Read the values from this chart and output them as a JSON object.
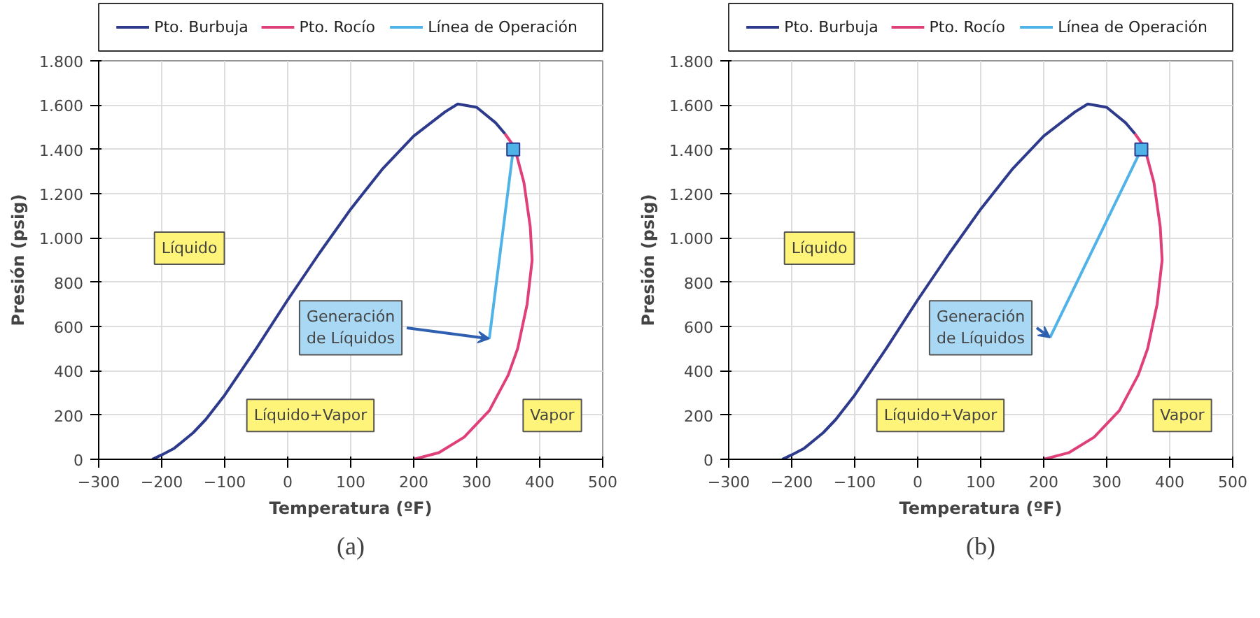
{
  "chart_data": [
    {
      "type": "line",
      "xlabel": "Temperatura (ºF)",
      "ylabel": "Presión (psig)",
      "xlim": [
        -300,
        500
      ],
      "ylim": [
        0,
        1800
      ],
      "xticks": [
        -300,
        -200,
        -100,
        0,
        100,
        200,
        300,
        400,
        500
      ],
      "yticks": [
        0,
        200,
        400,
        600,
        800,
        {
          "value": 1000,
          "label": "1.000"
        },
        {
          "value": 1200,
          "label": "1.200"
        },
        {
          "value": 1400,
          "label": "1.400"
        },
        {
          "value": 1600,
          "label": "1.600"
        },
        {
          "value": 1800,
          "label": "1.800"
        }
      ],
      "grid": true,
      "legend": "top",
      "line_style": "solid",
      "series": [
        {
          "name": "Pto. Burbuja",
          "color": "#2e3a8c",
          "x": [
            -215,
            -200,
            -180,
            -150,
            -130,
            -100,
            -50,
            0,
            50,
            100,
            150,
            200,
            250,
            270,
            300,
            330,
            345
          ],
          "values": [
            0,
            20,
            50,
            120,
            180,
            290,
            500,
            720,
            930,
            1130,
            1310,
            1460,
            1570,
            1605,
            1590,
            1520,
            1470
          ]
        },
        {
          "name": "Pto. Rocío",
          "color": "#e0407a",
          "x": [
            345,
            360,
            375,
            385,
            388,
            380,
            365,
            350,
            320,
            280,
            240,
            200
          ],
          "values": [
            1470,
            1410,
            1250,
            1050,
            900,
            700,
            500,
            380,
            220,
            100,
            30,
            0
          ]
        },
        {
          "name": "Línea de Operación",
          "color": "#4fb3e8",
          "x": [
            358,
            320
          ],
          "values": [
            1400,
            545
          ]
        },
        {
          "type": "scatter",
          "marker": "square",
          "color": "#4fb3e8",
          "x": [
            358
          ],
          "values": [
            1400
          ]
        }
      ],
      "annotations": [
        "Líquido",
        "Líquido+Vapor",
        "Vapor",
        {
          "text": "Generación de Líquidos",
          "x": 320,
          "y": 545
        },
        "(a)"
      ]
    },
    {
      "type": "line",
      "xlabel": "Temperatura (ºF)",
      "ylabel": "Presión (psig)",
      "xlim": [
        -300,
        500
      ],
      "ylim": [
        0,
        1800
      ],
      "xticks": [
        -300,
        -200,
        -100,
        0,
        100,
        200,
        300,
        400,
        500
      ],
      "yticks": [
        0,
        200,
        400,
        600,
        800,
        {
          "value": 1000,
          "label": "1.000"
        },
        {
          "value": 1200,
          "label": "1.200"
        },
        {
          "value": 1400,
          "label": "1.400"
        },
        {
          "value": 1600,
          "label": "1.600"
        },
        {
          "value": 1800,
          "label": "1.800"
        }
      ],
      "grid": true,
      "legend": "top",
      "line_style": "solid",
      "series": [
        {
          "name": "Pto. Burbuja",
          "color": "#2e3a8c",
          "x": [
            -215,
            -200,
            -180,
            -150,
            -130,
            -100,
            -50,
            0,
            50,
            100,
            150,
            200,
            250,
            270,
            300,
            330,
            345
          ],
          "values": [
            0,
            20,
            50,
            120,
            180,
            290,
            500,
            720,
            930,
            1130,
            1310,
            1460,
            1570,
            1605,
            1590,
            1520,
            1470
          ]
        },
        {
          "name": "Pto. Rocío",
          "color": "#e0407a",
          "x": [
            345,
            360,
            375,
            385,
            388,
            380,
            365,
            350,
            320,
            280,
            240,
            200
          ],
          "values": [
            1470,
            1410,
            1250,
            1050,
            900,
            700,
            500,
            380,
            220,
            100,
            30,
            0
          ]
        },
        {
          "name": "Línea de Operación",
          "color": "#4fb3e8",
          "x": [
            355,
            210
          ],
          "values": [
            1400,
            550
          ]
        },
        {
          "type": "scatter",
          "marker": "square",
          "color": "#4fb3e8",
          "x": [
            355
          ],
          "values": [
            1400
          ]
        }
      ],
      "annotations": [
        "Líquido",
        "Líquido+Vapor",
        "Vapor",
        {
          "text": "Generación de Líquidos",
          "x": 210,
          "y": 550
        },
        "(b)"
      ]
    }
  ]
}
